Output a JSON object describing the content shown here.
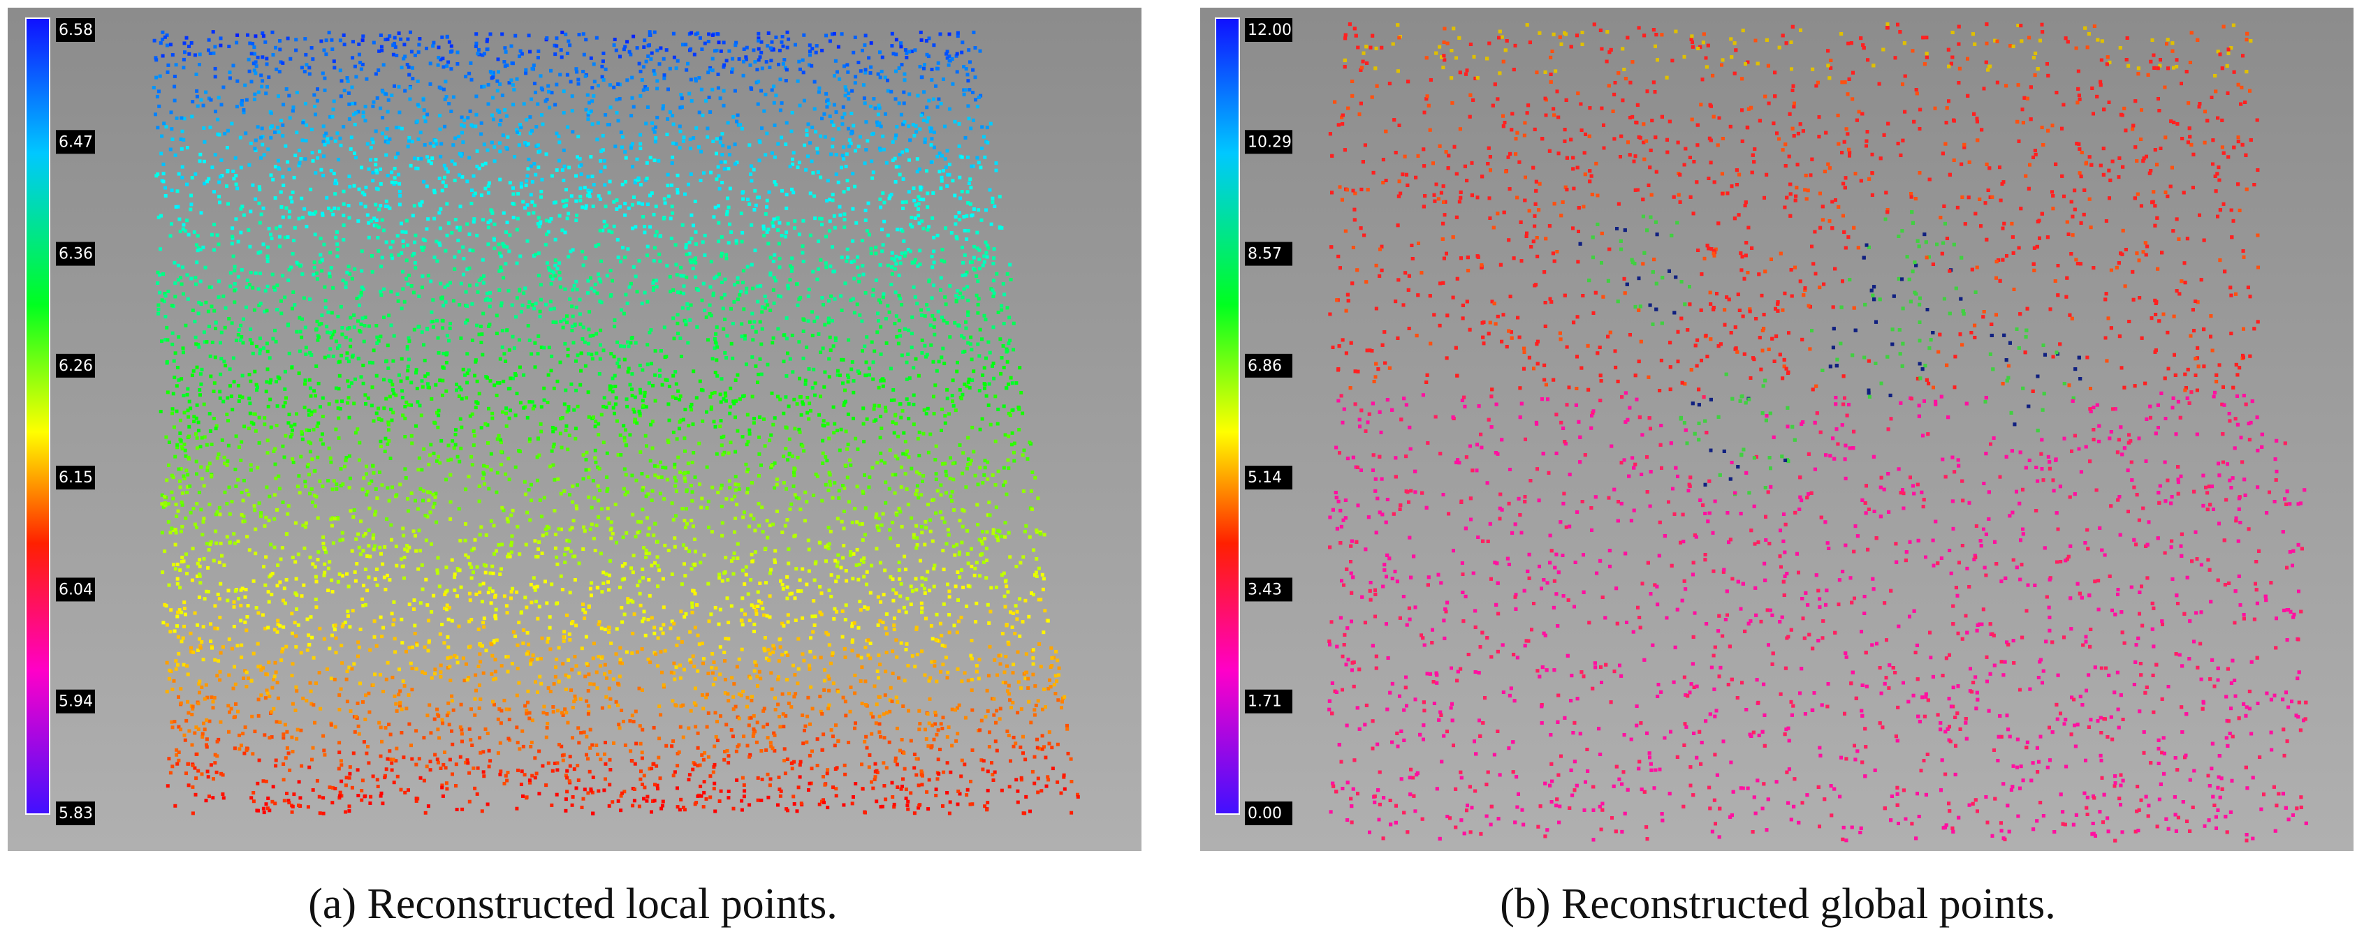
{
  "panels": [
    {
      "colorbar_labels": [
        "6.58",
        "6.47",
        "6.36",
        "6.26",
        "6.15",
        "6.04",
        "5.94",
        "5.83"
      ],
      "caption": "(a) Reconstructed local points."
    },
    {
      "colorbar_labels": [
        "12.00",
        "10.29",
        "8.57",
        "6.86",
        "5.14",
        "3.43",
        "1.71",
        "0.00"
      ],
      "caption": "(b) Reconstructed global points."
    }
  ]
}
